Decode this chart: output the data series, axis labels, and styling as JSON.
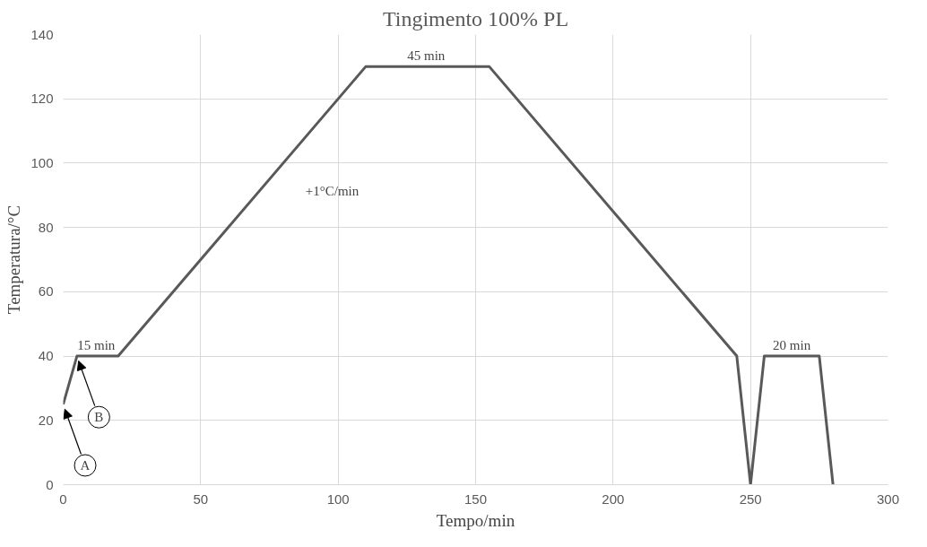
{
  "chart_data": {
    "type": "line",
    "title": "Tingimento 100% PL",
    "xlabel": "Tempo/min",
    "ylabel": "Temperatura/°C",
    "x": [
      0,
      5,
      20,
      110,
      155,
      245,
      250,
      255,
      275,
      280
    ],
    "series": [
      {
        "color": "#595959",
        "values": [
          25,
          40,
          40,
          130,
          130,
          40,
          0,
          40,
          40,
          0
        ]
      }
    ],
    "xlim": [
      0,
      300
    ],
    "xticks": [
      0,
      50,
      100,
      150,
      200,
      250,
      300
    ],
    "ylim": [
      0,
      140
    ],
    "yticks": [
      0,
      20,
      40,
      60,
      80,
      100,
      120,
      140
    ],
    "grid": true,
    "marker": "none",
    "line_style": "solid",
    "annotations": [
      {
        "text": "15 min",
        "x": 12,
        "y": 40
      },
      "+1°C/min",
      {
        "text": "45 min",
        "x": 132,
        "y": 130
      },
      {
        "text": "20 min",
        "x": 265,
        "y": 40
      },
      {
        "text": "A",
        "x": 0,
        "y": 25
      },
      {
        "text": "B",
        "x": 5,
        "y": 40
      }
    ]
  }
}
